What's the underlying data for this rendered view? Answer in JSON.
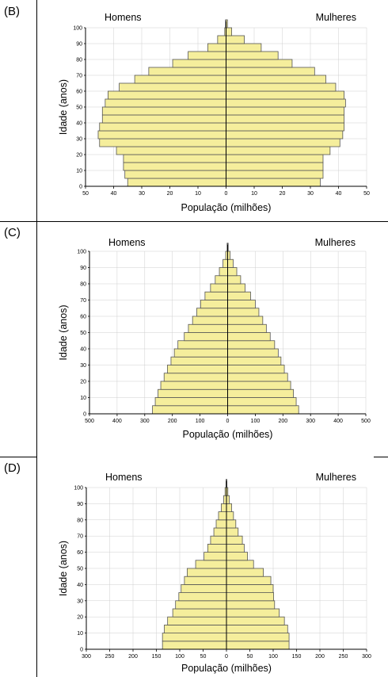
{
  "panels": [
    {
      "label": "(B)"
    },
    {
      "label": "(C)"
    },
    {
      "label": "(D)"
    }
  ],
  "colors": {
    "bar_fill": "#f5ee9c",
    "bar_stroke": "#555555",
    "axis": "#000000",
    "grid": "#cfcfcf"
  },
  "chart_data": [
    {
      "type": "bar",
      "orientation": "horizontal-pyramid",
      "left_title": "Homens",
      "right_title": "Mulheres",
      "xlabel": "População (milhões)",
      "ylabel": "Idade (anos)",
      "xlim": [
        -50,
        50
      ],
      "xticks": [
        "50",
        "40",
        "30",
        "20",
        "10",
        "0",
        "10",
        "20",
        "30",
        "40",
        "50"
      ],
      "yticks": [
        "0",
        "10",
        "20",
        "30",
        "40",
        "50",
        "60",
        "70",
        "80",
        "90",
        "100"
      ],
      "age_groups": [
        "0-4",
        "5-9",
        "10-14",
        "15-19",
        "20-24",
        "25-29",
        "30-34",
        "35-39",
        "40-44",
        "45-49",
        "50-54",
        "55-59",
        "60-64",
        "65-69",
        "70-74",
        "75-79",
        "80-84",
        "85-89",
        "90-94",
        "95-99",
        "100+"
      ],
      "series": [
        {
          "name": "Homens",
          "values": [
            35.0,
            36.0,
            36.5,
            36.5,
            39.0,
            45.0,
            45.5,
            45.0,
            44.0,
            44.0,
            43.0,
            42.0,
            38.0,
            32.5,
            27.5,
            19.0,
            13.5,
            6.5,
            3.0,
            0.5,
            0.2
          ]
        },
        {
          "name": "Mulheres",
          "values": [
            33.5,
            34.5,
            34.5,
            34.5,
            37.0,
            40.5,
            41.5,
            42.0,
            42.0,
            42.0,
            42.5,
            42.0,
            39.0,
            35.5,
            31.5,
            23.5,
            18.5,
            12.5,
            6.5,
            2.0,
            0.5
          ]
        }
      ]
    },
    {
      "type": "bar",
      "orientation": "horizontal-pyramid",
      "left_title": "Homens",
      "right_title": "Mulheres",
      "xlabel": "População (milhões)",
      "ylabel": "Idade (anos)",
      "xlim": [
        -500,
        500
      ],
      "xticks": [
        "500",
        "400",
        "300",
        "200",
        "100",
        "0",
        "100",
        "200",
        "300",
        "400",
        "500"
      ],
      "yticks": [
        "0",
        "10",
        "20",
        "30",
        "40",
        "50",
        "60",
        "70",
        "80",
        "90",
        "100"
      ],
      "age_groups": [
        "0-4",
        "5-9",
        "10-14",
        "15-19",
        "20-24",
        "25-29",
        "30-34",
        "35-39",
        "40-44",
        "45-49",
        "50-54",
        "55-59",
        "60-64",
        "65-69",
        "70-74",
        "75-79",
        "80-84",
        "85-89",
        "90-94",
        "95-99",
        "100+"
      ],
      "series": [
        {
          "name": "Homens",
          "values": [
            272,
            262,
            252,
            242,
            230,
            218,
            205,
            193,
            180,
            157,
            142,
            127,
            112,
            98,
            82,
            62,
            45,
            30,
            17,
            7,
            2
          ]
        },
        {
          "name": "Mulheres",
          "values": [
            257,
            248,
            238,
            228,
            217,
            205,
            193,
            183,
            170,
            154,
            140,
            127,
            113,
            100,
            83,
            63,
            47,
            33,
            20,
            9,
            2
          ]
        }
      ]
    },
    {
      "type": "bar",
      "orientation": "horizontal-pyramid",
      "left_title": "Homens",
      "right_title": "Mulheres",
      "xlabel": "População (milhões)",
      "ylabel": "Idade (anos)",
      "xlim": [
        -300,
        300
      ],
      "xticks": [
        "300",
        "250",
        "200",
        "150",
        "100",
        "50",
        "0",
        "50",
        "100",
        "150",
        "200",
        "250",
        "300"
      ],
      "yticks": [
        "0",
        "10",
        "20",
        "30",
        "40",
        "50",
        "60",
        "70",
        "80",
        "90",
        "100"
      ],
      "age_groups": [
        "0-4",
        "5-9",
        "10-14",
        "15-19",
        "20-24",
        "25-29",
        "30-34",
        "35-39",
        "40-44",
        "45-49",
        "50-54",
        "55-59",
        "60-64",
        "65-69",
        "70-74",
        "75-79",
        "80-84",
        "85-89",
        "90-94",
        "95-99",
        "100+"
      ],
      "series": [
        {
          "name": "Homens",
          "values": [
            137,
            137,
            133,
            126,
            115,
            109,
            102,
            97,
            90,
            84,
            66,
            48,
            40,
            34,
            27,
            22,
            17,
            11,
            6,
            3,
            1
          ]
        },
        {
          "name": "Mulheres",
          "values": [
            134,
            134,
            131,
            124,
            113,
            103,
            101,
            100,
            95,
            79,
            58,
            45,
            38,
            34,
            25,
            20,
            15,
            11,
            6,
            3,
            1
          ]
        }
      ]
    }
  ]
}
